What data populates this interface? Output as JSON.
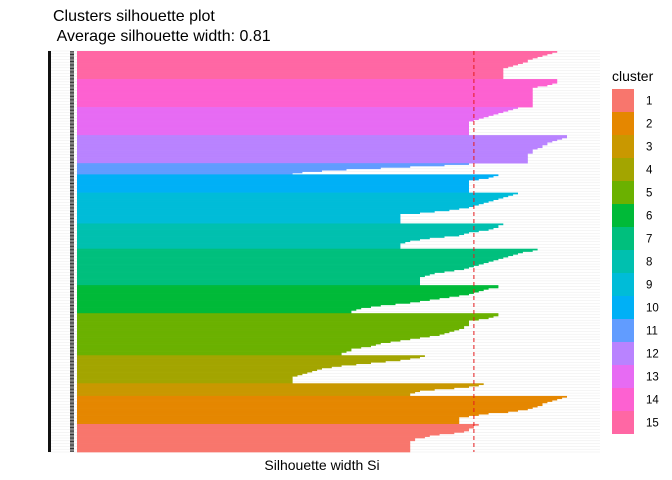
{
  "chart_data": {
    "type": "bar",
    "orientation": "horizontal",
    "title": "Clusters silhouette plot",
    "subtitle": " Average silhouette width: 0.81",
    "xlabel": "Silhouette width Si",
    "ylabel": "",
    "xlim": [
      0,
      1
    ],
    "average_silhouette_width": 0.81,
    "grid": true,
    "legend": {
      "title": "cluster",
      "placement": "right",
      "labels": [
        "1",
        "2",
        "3",
        "4",
        "5",
        "6",
        "7",
        "8",
        "9",
        "10",
        "11",
        "12",
        "13",
        "14",
        "15"
      ]
    },
    "colors": [
      "#F8766D",
      "#E58700",
      "#C99800",
      "#A3A500",
      "#6BB100",
      "#00BA38",
      "#00BF7D",
      "#00C0AF",
      "#00BCD8",
      "#00B0F6",
      "#619CFF",
      "#B983FF",
      "#E76BF3",
      "#FD61D1",
      "#FF67A4"
    ],
    "y_tick_labels": [],
    "clusters": [
      {
        "cluster": "1",
        "widths": [
          0.82,
          0.81,
          0.81,
          0.8,
          0.8,
          0.79,
          0.77,
          0.74,
          0.72,
          0.71,
          0.69,
          0.69,
          0.68,
          0.68,
          0.68,
          0.68,
          0.68,
          0.68,
          0.68,
          0.68
        ]
      },
      {
        "cluster": "2",
        "widths": [
          1.0,
          0.99,
          0.98,
          0.97,
          0.96,
          0.95,
          0.95,
          0.94,
          0.93,
          0.92,
          0.9,
          0.88,
          0.84,
          0.82,
          0.8,
          0.78,
          0.78,
          0.78,
          0.78,
          0.78
        ]
      },
      {
        "cluster": "3",
        "widths": [
          0.83,
          0.82,
          0.8,
          0.77,
          0.73,
          0.7,
          0.69,
          0.68,
          0.68
        ]
      },
      {
        "cluster": "4",
        "widths": [
          0.71,
          0.7,
          0.68,
          0.66,
          0.63,
          0.6,
          0.57,
          0.54,
          0.52,
          0.5,
          0.49,
          0.48,
          0.47,
          0.46,
          0.45,
          0.44,
          0.44,
          0.44,
          0.44,
          0.44
        ]
      },
      {
        "cluster": "5",
        "widths": [
          0.86,
          0.86,
          0.85,
          0.84,
          0.82,
          0.8,
          0.8,
          0.8,
          0.8,
          0.79,
          0.79,
          0.78,
          0.77,
          0.76,
          0.75,
          0.74,
          0.72,
          0.7,
          0.68,
          0.66,
          0.64,
          0.62,
          0.61,
          0.6,
          0.58,
          0.56,
          0.56,
          0.55,
          0.54,
          0.54
        ]
      },
      {
        "cluster": "6",
        "widths": [
          0.86,
          0.86,
          0.84,
          0.83,
          0.82,
          0.81,
          0.8,
          0.78,
          0.76,
          0.74,
          0.72,
          0.7,
          0.68,
          0.65,
          0.62,
          0.6,
          0.58,
          0.57,
          0.56,
          0.56
        ]
      },
      {
        "cluster": "7",
        "widths": [
          0.94,
          0.93,
          0.91,
          0.9,
          0.89,
          0.88,
          0.87,
          0.86,
          0.85,
          0.84,
          0.83,
          0.82,
          0.81,
          0.8,
          0.79,
          0.77,
          0.75,
          0.73,
          0.72,
          0.71,
          0.7,
          0.7,
          0.7,
          0.7,
          0.7,
          0.7
        ]
      },
      {
        "cluster": "8",
        "widths": [
          0.87,
          0.86,
          0.86,
          0.85,
          0.84,
          0.82,
          0.8,
          0.79,
          0.78,
          0.75,
          0.72,
          0.7,
          0.68,
          0.67,
          0.66,
          0.66,
          0.66,
          0.66
        ]
      },
      {
        "cluster": "9",
        "widths": [
          0.9,
          0.89,
          0.88,
          0.87,
          0.86,
          0.85,
          0.84,
          0.83,
          0.82,
          0.81,
          0.8,
          0.78,
          0.76,
          0.73,
          0.7,
          0.66,
          0.66,
          0.66,
          0.66,
          0.66,
          0.66,
          0.66
        ]
      },
      {
        "cluster": "10",
        "widths": [
          0.86,
          0.85,
          0.84,
          0.82,
          0.8,
          0.8,
          0.8,
          0.8,
          0.8,
          0.8,
          0.8,
          0.8,
          0.8
        ]
      },
      {
        "cluster": "11",
        "widths": [
          0.8,
          0.75,
          0.68,
          0.62,
          0.55,
          0.5,
          0.46,
          0.44
        ]
      },
      {
        "cluster": "12",
        "widths": [
          1.0,
          1.0,
          0.99,
          0.98,
          0.97,
          0.96,
          0.96,
          0.95,
          0.95,
          0.94,
          0.93,
          0.93,
          0.93,
          0.92,
          0.92,
          0.92,
          0.92,
          0.92,
          0.92,
          0.92
        ]
      },
      {
        "cluster": "13",
        "widths": [
          0.9,
          0.89,
          0.88,
          0.87,
          0.86,
          0.85,
          0.84,
          0.83,
          0.82,
          0.81,
          0.8,
          0.8,
          0.8,
          0.8,
          0.8,
          0.8,
          0.8,
          0.8,
          0.8,
          0.8
        ]
      },
      {
        "cluster": "14",
        "widths": [
          0.98,
          0.98,
          0.98,
          0.97,
          0.96,
          0.94,
          0.93,
          0.93,
          0.93,
          0.93,
          0.93,
          0.93,
          0.93,
          0.93,
          0.93,
          0.93,
          0.93,
          0.93,
          0.93,
          0.93
        ]
      },
      {
        "cluster": "15",
        "widths": [
          0.98,
          0.97,
          0.96,
          0.95,
          0.94,
          0.93,
          0.92,
          0.92,
          0.91,
          0.9,
          0.89,
          0.88,
          0.87,
          0.87,
          0.87,
          0.87,
          0.87,
          0.87,
          0.87,
          0.87
        ]
      }
    ]
  }
}
